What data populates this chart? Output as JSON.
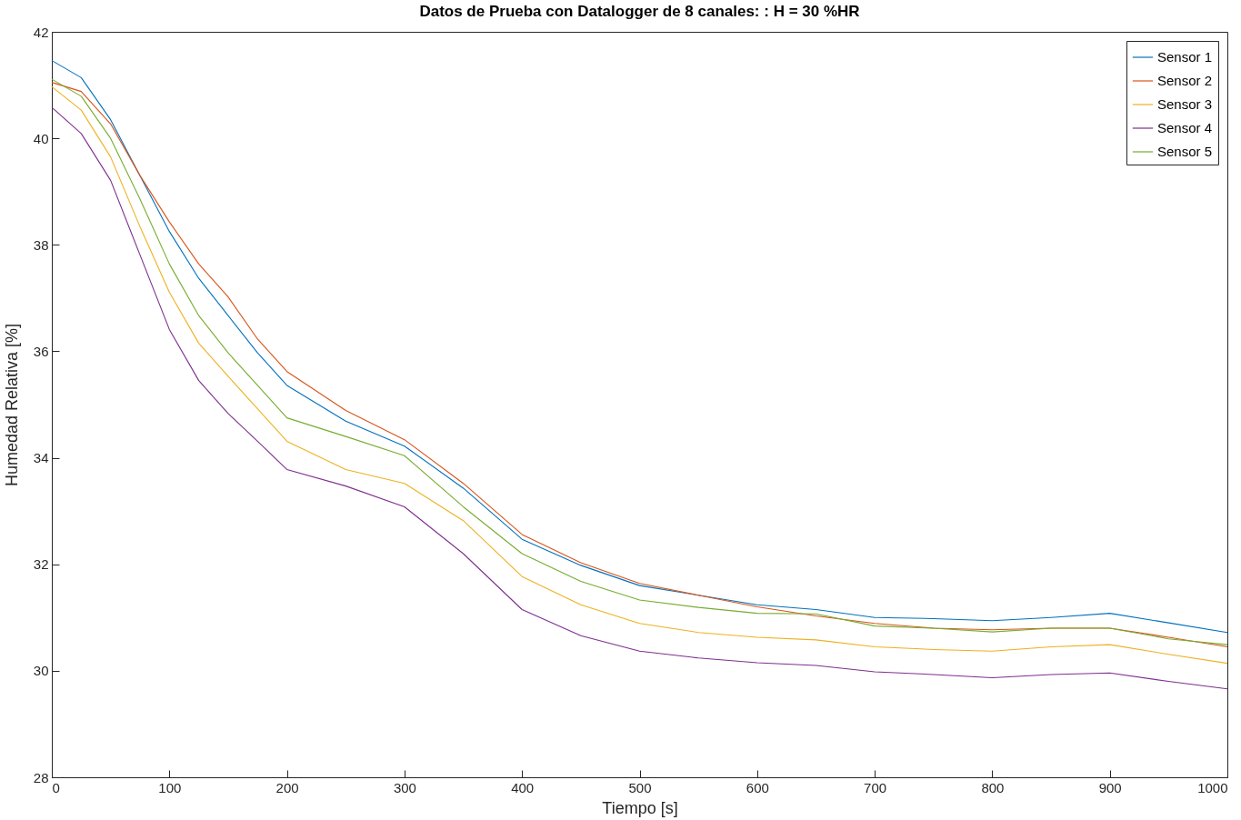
{
  "chart_data": {
    "type": "line",
    "title": "Datos de Prueba con Datalogger de 8 canales: : H = 30 %HR",
    "xlabel": "Tiempo [s]",
    "ylabel": "Humedad Relativa [%]",
    "x": [
      0,
      25,
      50,
      75,
      100,
      125,
      150,
      175,
      200,
      250,
      300,
      350,
      400,
      450,
      500,
      550,
      600,
      650,
      700,
      750,
      800,
      850,
      900,
      950,
      1000
    ],
    "xlim": [
      0,
      1000
    ],
    "xticks": [
      0,
      100,
      200,
      300,
      400,
      500,
      600,
      700,
      800,
      900,
      1000
    ],
    "ylim": [
      28,
      42
    ],
    "yticks": [
      28,
      30,
      32,
      34,
      36,
      38,
      40,
      42
    ],
    "legend": "top right",
    "series": [
      {
        "name": "Sensor 1",
        "color": "#0072bd",
        "values": [
          41.46,
          41.14,
          40.35,
          39.3,
          38.25,
          37.37,
          36.67,
          35.97,
          35.36,
          34.69,
          34.22,
          33.43,
          32.47,
          31.98,
          31.6,
          31.42,
          31.24,
          31.15,
          31.0,
          30.98,
          30.94,
          31.0,
          31.08,
          30.9,
          30.72
        ]
      },
      {
        "name": "Sensor 2",
        "color": "#d95319",
        "values": [
          41.05,
          40.88,
          40.27,
          39.3,
          38.43,
          37.64,
          37.02,
          36.23,
          35.62,
          34.89,
          34.34,
          33.52,
          32.56,
          32.03,
          31.64,
          31.42,
          31.2,
          31.03,
          30.89,
          30.8,
          30.77,
          30.8,
          30.8,
          30.63,
          30.45
        ]
      },
      {
        "name": "Sensor 3",
        "color": "#edb120",
        "values": [
          40.97,
          40.53,
          39.65,
          38.34,
          37.11,
          36.15,
          35.53,
          34.92,
          34.31,
          33.78,
          33.52,
          32.82,
          31.77,
          31.24,
          30.89,
          30.72,
          30.63,
          30.58,
          30.45,
          30.4,
          30.37,
          30.45,
          30.49,
          30.31,
          30.14
        ]
      },
      {
        "name": "Sensor 4",
        "color": "#7e2f8e",
        "values": [
          40.58,
          40.09,
          39.21,
          37.81,
          36.41,
          35.45,
          34.83,
          34.31,
          33.78,
          33.47,
          33.08,
          32.2,
          31.15,
          30.66,
          30.37,
          30.24,
          30.15,
          30.1,
          29.98,
          29.93,
          29.87,
          29.93,
          29.96,
          29.8,
          29.66
        ]
      },
      {
        "name": "Sensor 5",
        "color": "#77ac30",
        "values": [
          41.11,
          40.79,
          40.0,
          38.86,
          37.64,
          36.67,
          35.97,
          35.36,
          34.75,
          34.4,
          34.04,
          33.08,
          32.2,
          31.68,
          31.33,
          31.19,
          31.08,
          31.07,
          30.84,
          30.8,
          30.73,
          30.8,
          30.8,
          30.6,
          30.49
        ]
      }
    ]
  }
}
